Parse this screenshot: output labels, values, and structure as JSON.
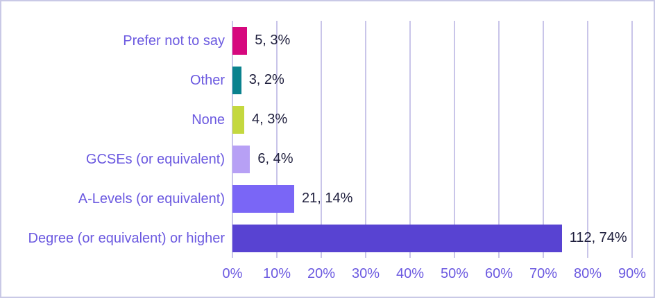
{
  "chart_data": {
    "type": "bar",
    "orientation": "horizontal",
    "title": "",
    "xlabel": "",
    "ylabel": "",
    "categories": [
      "Prefer not to say",
      "Other",
      "None",
      "GCSEs (or equivalent)",
      "A-Levels (or equivalent)",
      "Degree (or equivalent) or higher"
    ],
    "values": [
      5,
      3,
      4,
      6,
      21,
      112
    ],
    "percents": [
      3,
      2,
      3,
      4,
      14,
      74
    ],
    "data_labels": [
      "5, 3%",
      "3, 2%",
      "4, 3%",
      "6, 4%",
      "21, 14%",
      "112, 74%"
    ],
    "bar_colors": [
      "#D6087E",
      "#0A828E",
      "#C4D83F",
      "#B7A0F5",
      "#7A66F6",
      "#5843D2"
    ],
    "x_ticks": [
      "0%",
      "10%",
      "20%",
      "30%",
      "40%",
      "50%",
      "60%",
      "70%",
      "80%",
      "90%"
    ],
    "xlim": [
      0,
      90
    ],
    "grid": "vertical-gridlines-on",
    "legend": "none"
  },
  "colors": {
    "background": "#FFFFFF",
    "frame_border": "#C9C9E6",
    "gridline": "#C9C5E9",
    "axis_text": "#6B59E0",
    "category_text": "#6B59E0",
    "data_label_text": "#20203E"
  }
}
